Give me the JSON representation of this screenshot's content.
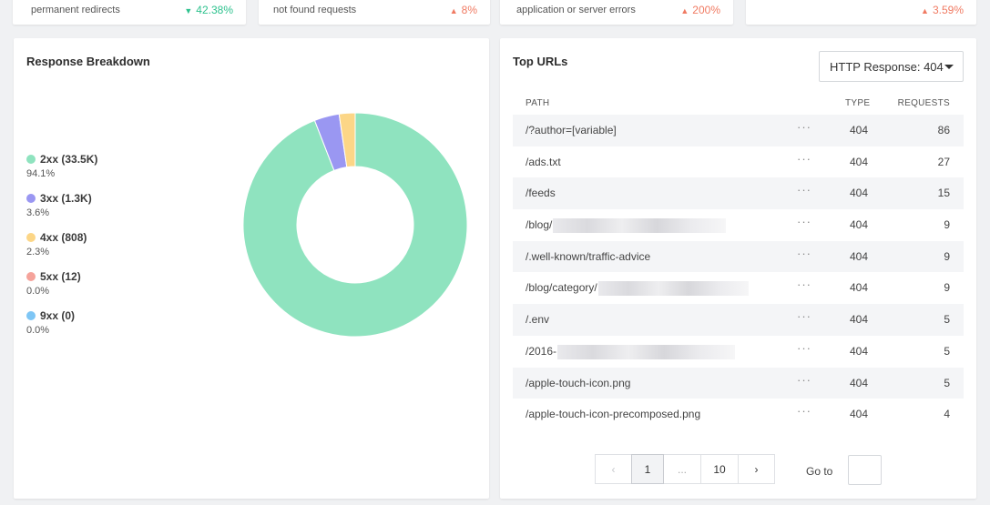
{
  "stats": [
    {
      "label": "permanent redirects",
      "value": "42.38%",
      "trend": "down"
    },
    {
      "label": "not found requests",
      "value": "8%",
      "trend": "up"
    },
    {
      "label": "application or server errors",
      "value": "200%",
      "trend": "up"
    },
    {
      "label": "",
      "value": "3.59%",
      "trend": "up"
    }
  ],
  "breakdown": {
    "title": "Response Breakdown",
    "items": [
      {
        "label": "2xx (33.5K)",
        "pct": "94.1%",
        "color": "#8fe3bf",
        "share": 94.1
      },
      {
        "label": "3xx (1.3K)",
        "pct": "3.6%",
        "color": "#9a97f2",
        "share": 3.6
      },
      {
        "label": "4xx (808)",
        "pct": "2.3%",
        "color": "#fcd687",
        "share": 2.3
      },
      {
        "label": "5xx (12)",
        "pct": "0.0%",
        "color": "#f5a39b",
        "share": 0.0
      },
      {
        "label": "9xx (0)",
        "pct": "0.0%",
        "color": "#7ec6f5",
        "share": 0.0
      }
    ]
  },
  "top_urls": {
    "title": "Top URLs",
    "filter_label": "HTTP Response: 404",
    "columns": {
      "path": "PATH",
      "type": "TYPE",
      "requests": "REQUESTS"
    },
    "more_label": "···",
    "rows": [
      {
        "path": "/?author=[variable]",
        "type": "404",
        "requests": "86",
        "redacted": false
      },
      {
        "path": "/ads.txt",
        "type": "404",
        "requests": "27",
        "redacted": false
      },
      {
        "path": "/feeds",
        "type": "404",
        "requests": "15",
        "redacted": false
      },
      {
        "path": "/blog/",
        "type": "404",
        "requests": "9",
        "redacted": true
      },
      {
        "path": "/.well-known/traffic-advice",
        "type": "404",
        "requests": "9",
        "redacted": false
      },
      {
        "path": "/blog/category/",
        "type": "404",
        "requests": "9",
        "redacted": true
      },
      {
        "path": "/.env",
        "type": "404",
        "requests": "5",
        "redacted": false
      },
      {
        "path": "/2016-",
        "type": "404",
        "requests": "5",
        "redacted": true
      },
      {
        "path": "/apple-touch-icon.png",
        "type": "404",
        "requests": "5",
        "redacted": false
      },
      {
        "path": "/apple-touch-icon-precomposed.png",
        "type": "404",
        "requests": "4",
        "redacted": false
      }
    ],
    "pagination": {
      "prev": "‹",
      "current": "1",
      "ellipsis": "...",
      "last": "10",
      "next": "›",
      "goto_label": "Go to"
    }
  }
}
